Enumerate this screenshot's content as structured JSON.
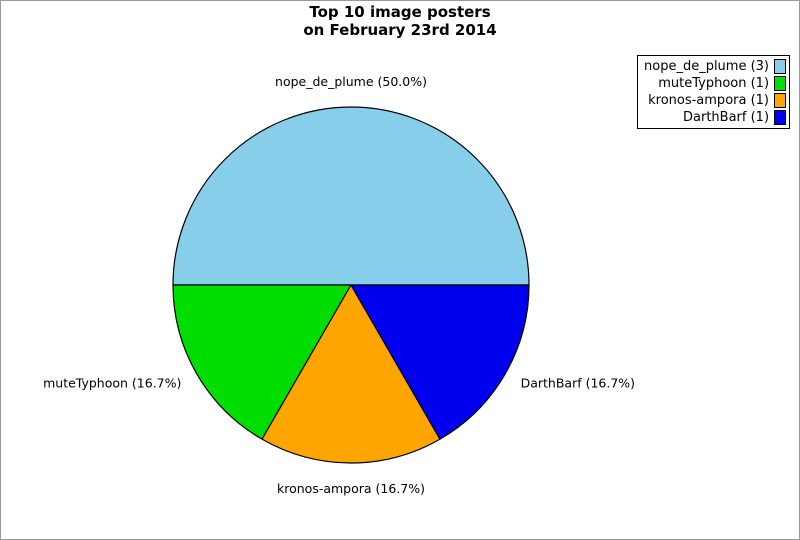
{
  "title": {
    "line1": "Top 10 image posters",
    "line2": "on February 23rd 2014"
  },
  "colors": {
    "figure_border": "#999999",
    "background": "#ffffff",
    "slice_stroke": "#000000",
    "text": "#000000"
  },
  "chart_data": {
    "type": "pie",
    "title": "Top 10 image posters on February 23rd 2014",
    "total": 6,
    "start_angle_deg": 0,
    "direction": "counterclockwise",
    "legend_position": "upper-right",
    "slices": [
      {
        "label": "nope_de_plume",
        "count": 3,
        "percent": 50.0,
        "color": "#87CEEB",
        "slice_label": "nope_de_plume (50.0%)",
        "legend_label": "nope_de_plume (3)"
      },
      {
        "label": "muteTyphoon",
        "count": 1,
        "percent": 16.7,
        "color": "#00DD00",
        "slice_label": "muteTyphoon (16.7%)",
        "legend_label": "muteTyphoon (1)"
      },
      {
        "label": "kronos-ampora",
        "count": 1,
        "percent": 16.7,
        "color": "#FFA500",
        "slice_label": "kronos-ampora (16.7%)",
        "legend_label": "kronos-ampora (1)"
      },
      {
        "label": "DarthBarf",
        "count": 1,
        "percent": 16.7,
        "color": "#0000EE",
        "slice_label": "DarthBarf (16.7%)",
        "legend_label": "DarthBarf (1)"
      }
    ]
  }
}
